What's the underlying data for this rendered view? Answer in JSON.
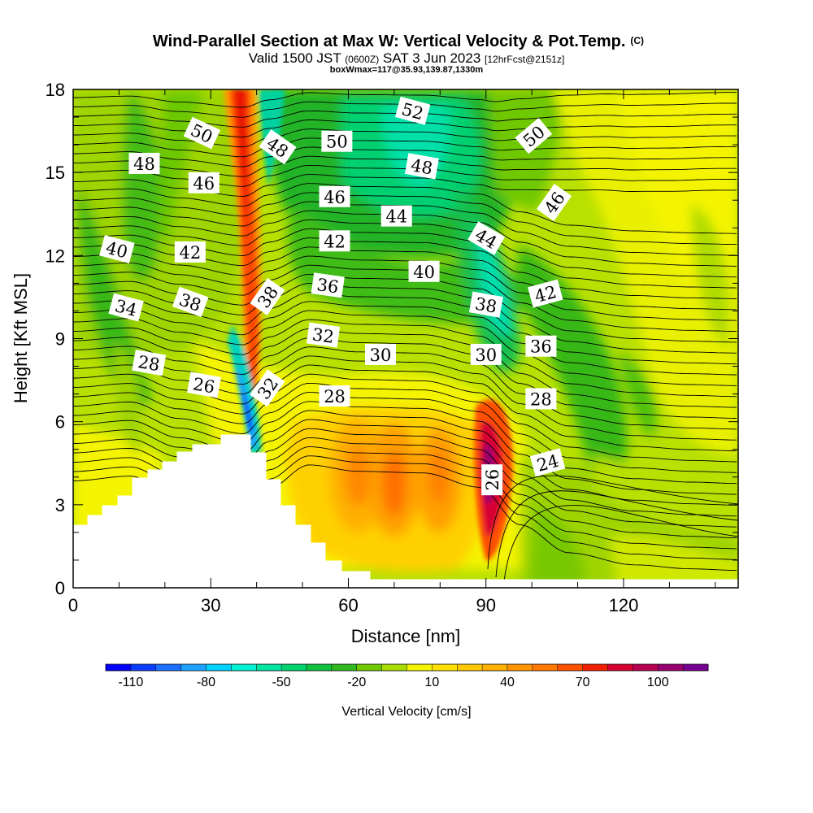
{
  "chart_data": {
    "type": "contour",
    "title": "Wind-Parallel Section at Max W: Vertical Velocity & Pot.Temp.",
    "title_mark": "(C)",
    "subtitle_parts": [
      "Valid 1500 JST",
      "(0600Z)",
      "SAT 3 Jun 2023",
      "[12hrFcst@2151z]"
    ],
    "subtitle2": "boxWmax=117@35.93,139.87,1330m",
    "xlabel": "Distance [nm]",
    "ylabel": "Height [Kft MSL]",
    "xlim": [
      0,
      145
    ],
    "ylim": [
      0,
      18
    ],
    "x_ticks": [
      "0",
      "30",
      "60",
      "90",
      "120"
    ],
    "x_tick_values": [
      0,
      30,
      60,
      90,
      120
    ],
    "y_ticks": [
      "0",
      "3",
      "6",
      "9",
      "12",
      "15",
      "18"
    ],
    "y_tick_values": [
      0,
      3,
      6,
      9,
      12,
      15,
      18
    ],
    "colorbar": {
      "label": "Vertical Velocity [cm/s]",
      "tick_labels": [
        "-110",
        "-80",
        "-50",
        "-20",
        "10",
        "40",
        "70",
        "100"
      ],
      "tick_values": [
        -110,
        -80,
        -50,
        -20,
        10,
        40,
        70,
        100
      ],
      "min": -120,
      "max": 120,
      "step": 10,
      "colors": [
        "#0000ff",
        "#0a3cff",
        "#1e6eff",
        "#1ea0ff",
        "#00d2ff",
        "#00f0d2",
        "#00e6a0",
        "#00d270",
        "#10c040",
        "#30b820",
        "#70c800",
        "#a8dc00",
        "#f4f400",
        "#ffe000",
        "#ffc800",
        "#ffb000",
        "#ff9400",
        "#ff7800",
        "#ff5000",
        "#f02000",
        "#d80030",
        "#b80050",
        "#980070",
        "#780090"
      ]
    },
    "terrain_note": "mountain profile rising to ~5.5 kft near 30-36 nm",
    "theta_contour_labels": [
      {
        "text": "50",
        "x": 28,
        "y": 16.4,
        "rot": 25
      },
      {
        "text": "48",
        "x": 15.5,
        "y": 15.3,
        "rot": 0
      },
      {
        "text": "46",
        "x": 28.5,
        "y": 14.6,
        "rot": 0
      },
      {
        "text": "40",
        "x": 9.5,
        "y": 12.2,
        "rot": 15
      },
      {
        "text": "42",
        "x": 25.5,
        "y": 12.1,
        "rot": 0
      },
      {
        "text": "34",
        "x": 11.5,
        "y": 10.1,
        "rot": 15
      },
      {
        "text": "38",
        "x": 25.5,
        "y": 10.3,
        "rot": 20
      },
      {
        "text": "28",
        "x": 16.5,
        "y": 8.1,
        "rot": 10
      },
      {
        "text": "26",
        "x": 28.5,
        "y": 7.3,
        "rot": 10
      },
      {
        "text": "48",
        "x": 44.5,
        "y": 15.9,
        "rot": 35
      },
      {
        "text": "38",
        "x": 42.5,
        "y": 10.5,
        "rot": -55
      },
      {
        "text": "32",
        "x": 42.5,
        "y": 7.2,
        "rot": -55
      },
      {
        "text": "50",
        "x": 57.5,
        "y": 16.1,
        "rot": 0
      },
      {
        "text": "46",
        "x": 57,
        "y": 14.1,
        "rot": 0
      },
      {
        "text": "42",
        "x": 57,
        "y": 12.5,
        "rot": 0
      },
      {
        "text": "36",
        "x": 55.5,
        "y": 10.9,
        "rot": 8
      },
      {
        "text": "32",
        "x": 54.5,
        "y": 9.1,
        "rot": 8
      },
      {
        "text": "28",
        "x": 57,
        "y": 6.9,
        "rot": 0
      },
      {
        "text": "52",
        "x": 74,
        "y": 17.2,
        "rot": 15
      },
      {
        "text": "48",
        "x": 76,
        "y": 15.2,
        "rot": 10
      },
      {
        "text": "44",
        "x": 70.5,
        "y": 13.4,
        "rot": 0
      },
      {
        "text": "40",
        "x": 76.5,
        "y": 11.4,
        "rot": 0
      },
      {
        "text": "30",
        "x": 67,
        "y": 8.4,
        "rot": 0
      },
      {
        "text": "44",
        "x": 90,
        "y": 12.6,
        "rot": 30
      },
      {
        "text": "38",
        "x": 90,
        "y": 10.2,
        "rot": 10
      },
      {
        "text": "30",
        "x": 90,
        "y": 8.4,
        "rot": 0
      },
      {
        "text": "26",
        "x": 91.5,
        "y": 3.9,
        "rot": -90
      },
      {
        "text": "50",
        "x": 100.5,
        "y": 16.3,
        "rot": -40
      },
      {
        "text": "46",
        "x": 105,
        "y": 13.9,
        "rot": -55
      },
      {
        "text": "42",
        "x": 103,
        "y": 10.6,
        "rot": -15
      },
      {
        "text": "36",
        "x": 102,
        "y": 8.7,
        "rot": 0
      },
      {
        "text": "28",
        "x": 102,
        "y": 6.8,
        "rot": 0
      },
      {
        "text": "24",
        "x": 103.5,
        "y": 4.5,
        "rot": -15
      }
    ]
  }
}
